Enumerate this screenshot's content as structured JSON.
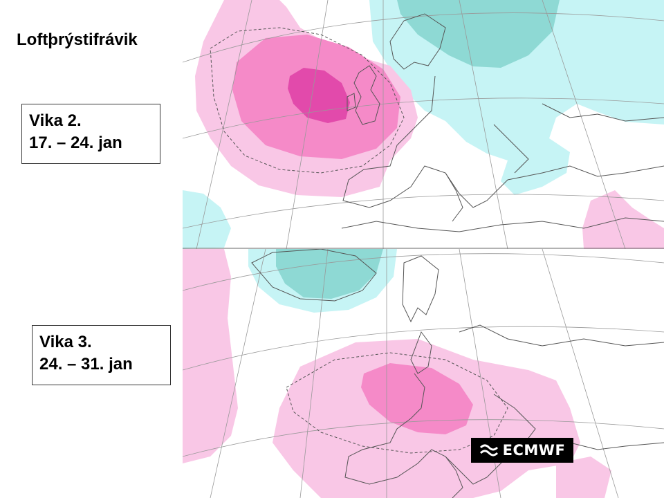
{
  "title": "Loftþrýstifrávik",
  "panels": [
    {
      "week_label": "Vika 2.",
      "dates": "17. – 24. jan"
    },
    {
      "week_label": "Vika 3.",
      "dates": "24. – 31. jan"
    }
  ],
  "logo": {
    "text": "ECMWF",
    "icon": "ecmwf-swirl-icon"
  },
  "colors": {
    "positive_light": "#f9c7e6",
    "positive_medium": "#f58ac8",
    "positive_strong": "#e24aab",
    "negative_light": "#c6f4f5",
    "negative_medium": "#8ed9d4",
    "coast": "#555555",
    "graticule": "#999999"
  }
}
